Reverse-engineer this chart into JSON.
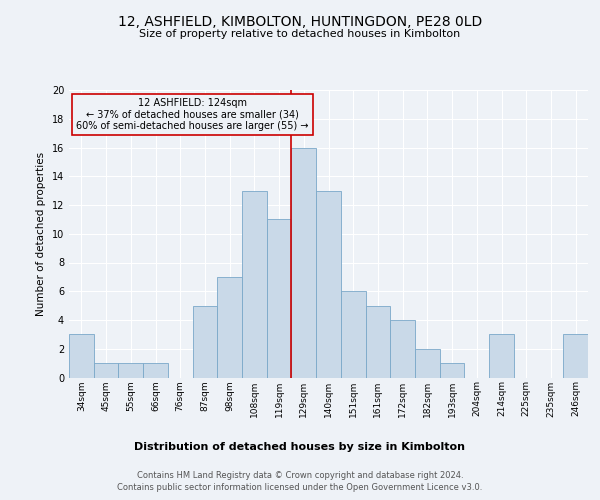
{
  "title": "12, ASHFIELD, KIMBOLTON, HUNTINGDON, PE28 0LD",
  "subtitle": "Size of property relative to detached houses in Kimbolton",
  "xlabel": "Distribution of detached houses by size in Kimbolton",
  "ylabel": "Number of detached properties",
  "categories": [
    "34sqm",
    "45sqm",
    "55sqm",
    "66sqm",
    "76sqm",
    "87sqm",
    "98sqm",
    "108sqm",
    "119sqm",
    "129sqm",
    "140sqm",
    "151sqm",
    "161sqm",
    "172sqm",
    "182sqm",
    "193sqm",
    "204sqm",
    "214sqm",
    "225sqm",
    "235sqm",
    "246sqm"
  ],
  "values": [
    3,
    1,
    1,
    1,
    0,
    5,
    7,
    13,
    11,
    16,
    13,
    6,
    5,
    4,
    2,
    1,
    0,
    3,
    0,
    0,
    3
  ],
  "bar_color": "#c9d9e8",
  "bar_edge_color": "#7aa8c9",
  "background_color": "#eef2f7",
  "grid_color": "#ffffff",
  "property_label": "12 ASHFIELD: 124sqm",
  "annotation_line1": "← 37% of detached houses are smaller (34)",
  "annotation_line2": "60% of semi-detached houses are larger (55) →",
  "vline_index": 8.5,
  "vline_color": "#cc0000",
  "annotation_box_edge": "#cc0000",
  "ylim": [
    0,
    20
  ],
  "yticks": [
    0,
    2,
    4,
    6,
    8,
    10,
    12,
    14,
    16,
    18,
    20
  ],
  "footer_line1": "Contains HM Land Registry data © Crown copyright and database right 2024.",
  "footer_line2": "Contains public sector information licensed under the Open Government Licence v3.0."
}
